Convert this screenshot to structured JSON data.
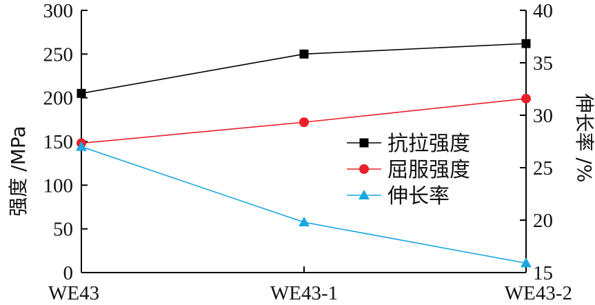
{
  "chart_data": {
    "type": "line",
    "categories": [
      "WE43",
      "WE43-1",
      "WE43-2"
    ],
    "y_left": {
      "label": "强度 /MPa",
      "range": [
        0,
        300
      ],
      "ticks": [
        "0",
        "50",
        "100",
        "150",
        "200",
        "250",
        "300"
      ]
    },
    "y_right": {
      "label": "伸长率 /%",
      "range": [
        15,
        40
      ],
      "ticks": [
        "15",
        "20",
        "25",
        "30",
        "35",
        "40"
      ]
    },
    "series": [
      {
        "name": "抗拉强度",
        "axis": "left",
        "values": [
          205,
          250,
          262
        ],
        "color": "#000000",
        "marker": "square"
      },
      {
        "name": "屈服强度",
        "axis": "left",
        "values": [
          148,
          172,
          199
        ],
        "color": "#e8202a",
        "marker": "circle"
      },
      {
        "name": "伸长率",
        "axis": "right",
        "values": [
          27,
          19.8,
          15.9
        ],
        "color": "#1aa7e0",
        "marker": "triangle"
      }
    ],
    "legend_position": "center-right",
    "grid": false
  }
}
